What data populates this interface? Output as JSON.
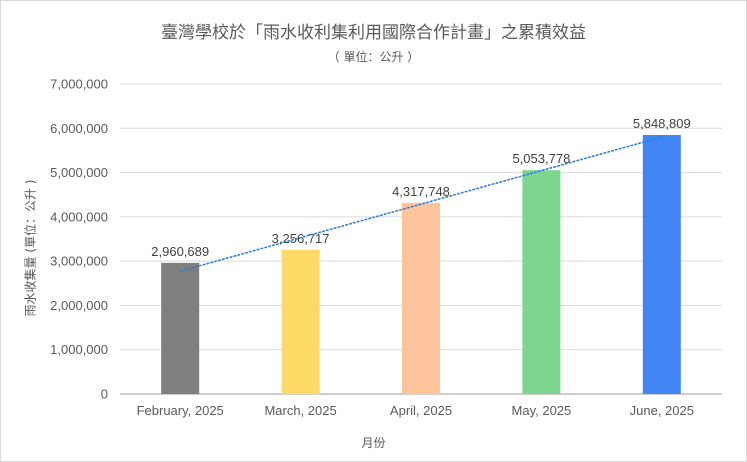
{
  "chart_data": {
    "type": "bar",
    "title": "臺灣學校於「雨水收利集利用國際合作計畫」之累積效益",
    "subtitle": "（ 單位：公升 ）",
    "xlabel": "月份",
    "ylabel": "雨水收集量 (單位：公升 )",
    "categories": [
      "February, 2025",
      "March, 2025",
      "April, 2025",
      "May, 2025",
      "June, 2025"
    ],
    "values": [
      2960689,
      3256717,
      4317748,
      5053778,
      5848809
    ],
    "value_labels": [
      "2,960,689",
      "3,256,717",
      "4,317,748",
      "5,053,778",
      "5,848,809"
    ],
    "bar_colors": [
      "#7f7f7f",
      "#ffd966",
      "#ffc49b",
      "#7dd68e",
      "#4285f4"
    ],
    "ylim": [
      0,
      7000000
    ],
    "yticks": [
      0,
      1000000,
      2000000,
      3000000,
      4000000,
      5000000,
      6000000,
      7000000
    ],
    "ytick_labels": [
      "0",
      "1,000,000",
      "2,000,000",
      "3,000,000",
      "4,000,000",
      "5,000,000",
      "6,000,000",
      "7,000,000"
    ],
    "trendline": {
      "type": "linear",
      "style": "dotted",
      "color": "#2f7ed8"
    },
    "grid": true,
    "legend": "none"
  }
}
